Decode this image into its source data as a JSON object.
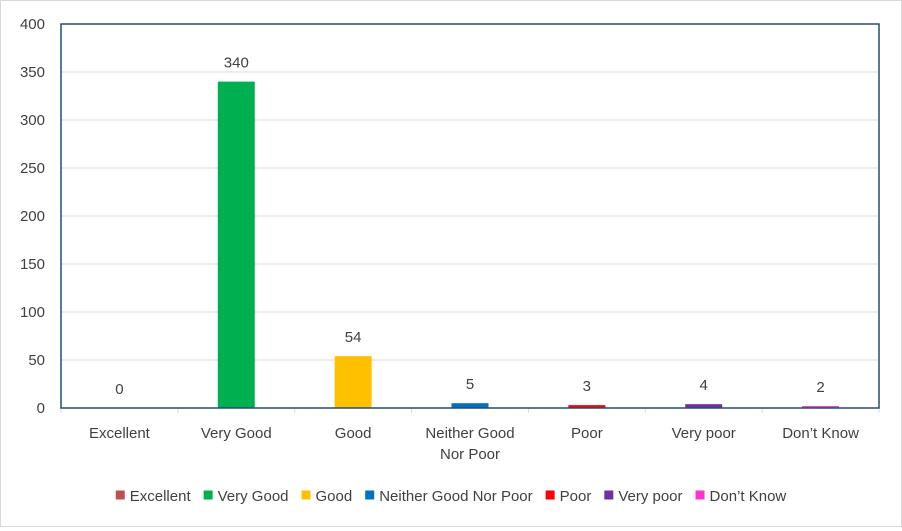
{
  "chart_data": {
    "type": "bar",
    "title": "",
    "xlabel": "",
    "ylabel": "",
    "ylim": [
      0,
      400
    ],
    "yticks": [
      0,
      50,
      100,
      150,
      200,
      250,
      300,
      350,
      400
    ],
    "grid": true,
    "legend_position": "bottom",
    "categories": [
      "Excellent",
      "Very Good",
      "Good",
      "Neither Good Nor Poor",
      "Poor",
      "Very poor",
      "Don’t Know"
    ],
    "category_label_lines": [
      [
        "Excellent"
      ],
      [
        "Very Good"
      ],
      [
        "Good"
      ],
      [
        "Neither Good",
        "Nor Poor"
      ],
      [
        "Poor"
      ],
      [
        "Very poor"
      ],
      [
        "Don’t Know"
      ]
    ],
    "values": [
      0,
      340,
      54,
      5,
      3,
      4,
      2
    ],
    "colors": [
      "#C0504D",
      "#00B050",
      "#FFC000",
      "#0070C0",
      "#FF0000",
      "#7030A0",
      "#FF33CC"
    ],
    "legend": [
      "Excellent",
      "Very Good",
      "Good",
      "Neither Good Nor Poor",
      "Poor",
      "Very poor",
      "Don’t Know"
    ]
  },
  "colors": {
    "plot_border": "#1F4E79",
    "gridline": "#d9d9d9",
    "text": "#404040"
  }
}
